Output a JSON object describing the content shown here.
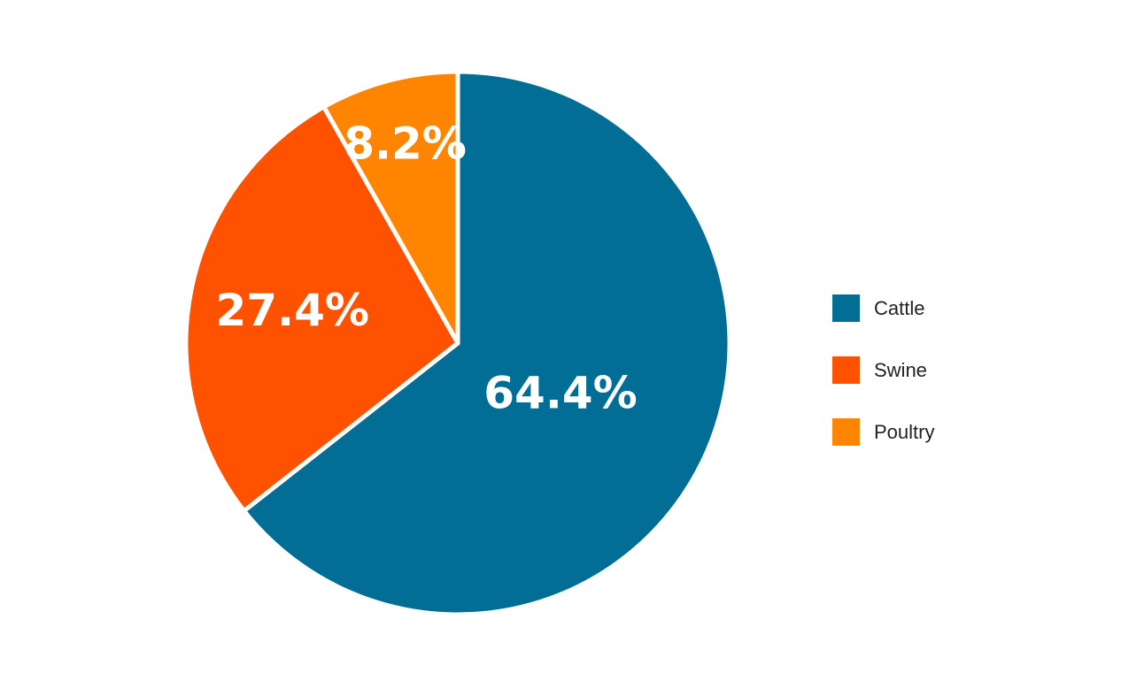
{
  "chart_data": {
    "type": "pie",
    "categories": [
      "Cattle",
      "Swine",
      "Poultry"
    ],
    "values": [
      64.4,
      27.4,
      8.2
    ],
    "labels": [
      "64.4%",
      "27.4%",
      "8.2%"
    ],
    "colors": [
      "#026E96",
      "#FF5200",
      "#FF8500"
    ],
    "start_angle": "12 o'clock",
    "direction": "clockwise",
    "legend": {
      "position": "right",
      "items": [
        {
          "label": "Cattle",
          "color": "#026E96"
        },
        {
          "label": "Swine",
          "color": "#FF5200"
        },
        {
          "label": "Poultry",
          "color": "#FF8500"
        }
      ]
    }
  }
}
